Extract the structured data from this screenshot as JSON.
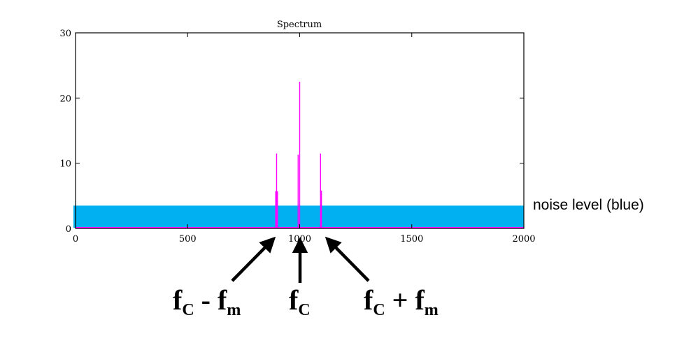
{
  "chart_data": {
    "type": "line",
    "title": "Spectrum",
    "xlabel": "",
    "ylabel": "",
    "xlim": [
      0,
      2000
    ],
    "ylim": [
      0,
      30
    ],
    "x_ticks": [
      0,
      500,
      1000,
      1500,
      2000
    ],
    "y_ticks": [
      0,
      10,
      20,
      30
    ],
    "x_tick_labels": [
      "0",
      "500",
      "1000",
      "1500",
      "2000"
    ],
    "y_tick_labels": [
      "0",
      "10",
      "20",
      "30"
    ],
    "grid": false,
    "noise_band": {
      "x_range": [
        0,
        2000
      ],
      "level": 3.5,
      "color": "#00b0f0"
    },
    "series": [
      {
        "color": "#ff00ff",
        "spikes": [
          {
            "x": 893,
            "y": 5.7
          },
          {
            "x": 897,
            "y": 11.5
          },
          {
            "x": 901,
            "y": 5.7
          },
          {
            "x": 993,
            "y": 11.3
          },
          {
            "x": 1000,
            "y": 22.5
          },
          {
            "x": 1093,
            "y": 11.5
          },
          {
            "x": 1097,
            "y": 5.8
          }
        ]
      }
    ]
  },
  "annotations": {
    "noise_label": "noise level (blue)",
    "lower_sideband": {
      "base": "f",
      "sub1": "C",
      "op": " - ",
      "sub2": "m"
    },
    "carrier": {
      "base": "f",
      "sub1": "C"
    },
    "upper_sideband": {
      "base": "f",
      "sub1": "C",
      "op": " + ",
      "sub2": "m"
    }
  }
}
